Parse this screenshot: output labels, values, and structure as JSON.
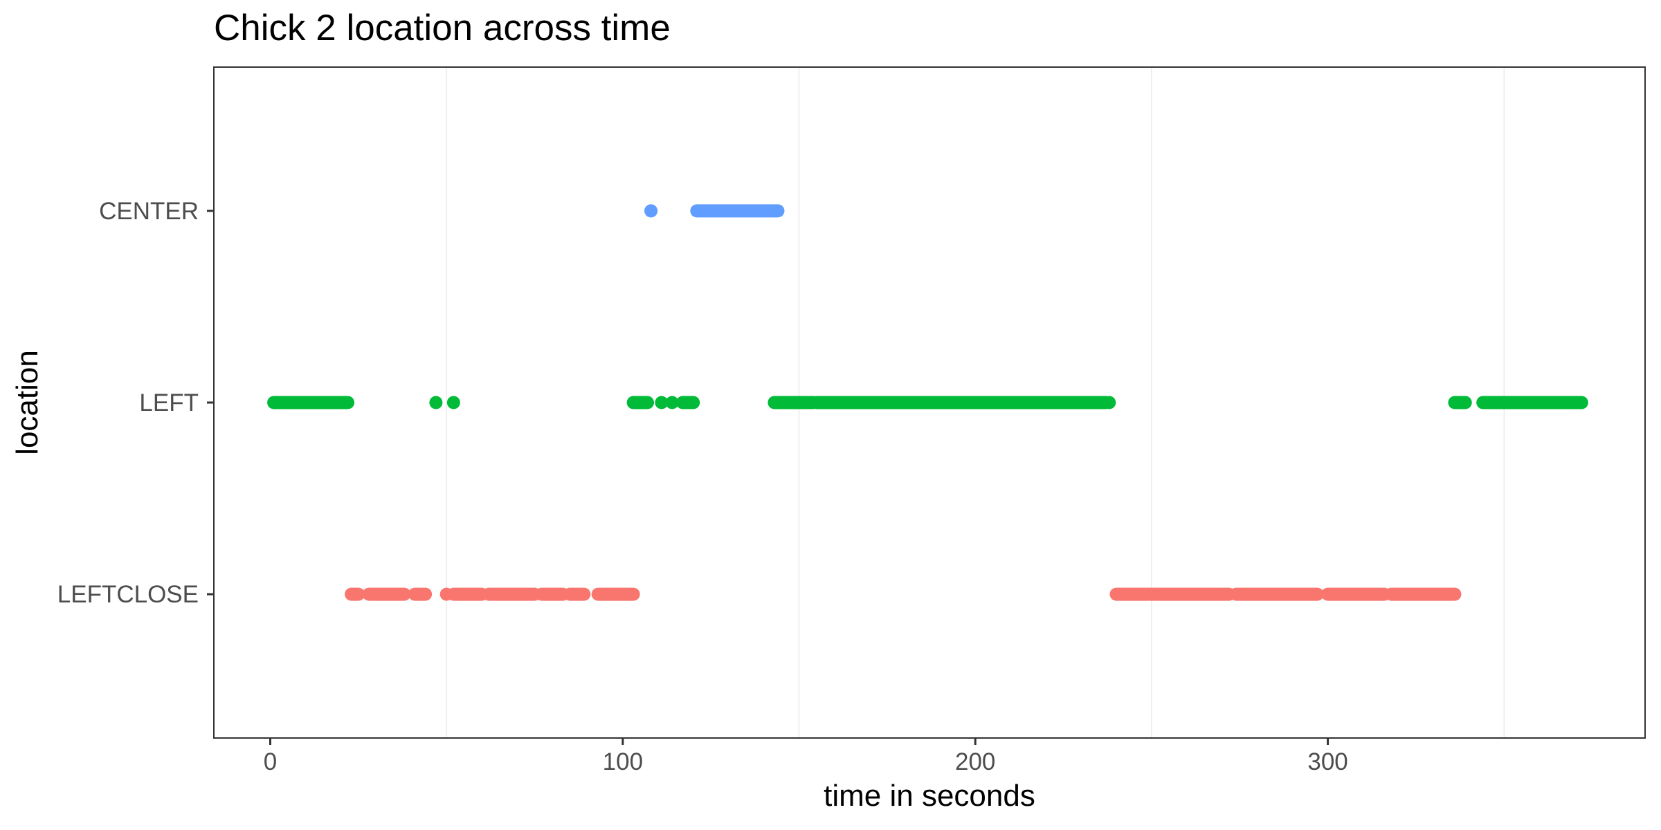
{
  "chart_data": {
    "type": "scatter",
    "title": "Chick 2 location across time",
    "xlabel": "time in seconds",
    "ylabel": "location",
    "xlim": [
      -16,
      390
    ],
    "x_ticks": [
      0,
      100,
      200,
      300
    ],
    "x_minor_ticks": [
      50,
      150,
      250,
      350
    ],
    "categories": [
      "LEFTCLOSE",
      "LEFT",
      "CENTER"
    ],
    "grid": true,
    "legend": "none",
    "series": [
      {
        "category": "CENTER",
        "color": "#619CFF",
        "runs": [
          [
            108,
            108
          ],
          [
            121,
            144
          ]
        ],
        "points": [
          108
        ]
      },
      {
        "category": "LEFT",
        "color": "#00BA38",
        "runs": [
          [
            1,
            22
          ],
          [
            103,
            107
          ],
          [
            117,
            120
          ],
          [
            143,
            154
          ],
          [
            155,
            237
          ],
          [
            336,
            339
          ],
          [
            344,
            372
          ]
        ],
        "points": [
          47,
          52,
          111,
          114,
          238
        ]
      },
      {
        "category": "LEFTCLOSE",
        "color": "#F8766D",
        "runs": [
          [
            23,
            25
          ],
          [
            28,
            38
          ],
          [
            41,
            44
          ],
          [
            52,
            60
          ],
          [
            62,
            75
          ],
          [
            77,
            83
          ],
          [
            85,
            89
          ],
          [
            93,
            103
          ],
          [
            240,
            272
          ],
          [
            274,
            297
          ],
          [
            300,
            316
          ],
          [
            318,
            336
          ]
        ],
        "points": [
          50
        ]
      }
    ]
  }
}
